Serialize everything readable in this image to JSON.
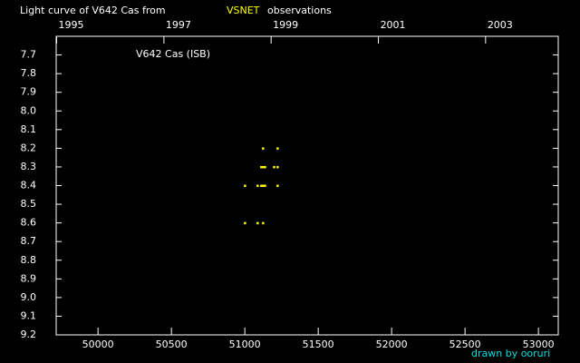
{
  "chart_data": {
    "type": "scatter",
    "title": {
      "prefix": "Light curve of V642 Cas from",
      "source": "VSNET",
      "suffix": "observations"
    },
    "source_color": "#ffff00",
    "annotation": "V642 Cas (ISB)",
    "credit": "drawn by ooruri",
    "credit_color": "#00e0e0",
    "series": [
      {
        "name": "V642 Cas",
        "color": "#ffff00",
        "x": [
          51123,
          51222,
          51111,
          51123,
          51136,
          51198,
          51222,
          51000,
          51086,
          51111,
          51123,
          51136,
          51222,
          51000,
          51086,
          51123
        ],
        "values": [
          8.2,
          8.2,
          8.3,
          8.3,
          8.3,
          8.3,
          8.3,
          8.4,
          8.4,
          8.4,
          8.4,
          8.4,
          8.4,
          8.6,
          8.6,
          8.6
        ]
      }
    ],
    "xlim": [
      49715,
      53135
    ],
    "xticks": [
      50000,
      50500,
      51000,
      51500,
      52000,
      52500,
      53000
    ],
    "x2ticks": [
      {
        "value": 49718,
        "label": "1995"
      },
      {
        "value": 50449,
        "label": "1997"
      },
      {
        "value": 51179,
        "label": "1999"
      },
      {
        "value": 51910,
        "label": "2001"
      },
      {
        "value": 52640,
        "label": "2003"
      }
    ],
    "ylim": [
      7.6,
      9.2
    ],
    "y_inverted": true,
    "yticks": [
      7.7,
      7.8,
      7.9,
      {
        "value": 8,
        "label": "8.0"
      },
      8.1,
      8.2,
      8.3,
      8.4,
      8.5,
      8.6,
      8.7,
      8.8,
      8.9,
      {
        "value": 9,
        "label": "9.0"
      },
      9.1,
      9.2
    ]
  }
}
